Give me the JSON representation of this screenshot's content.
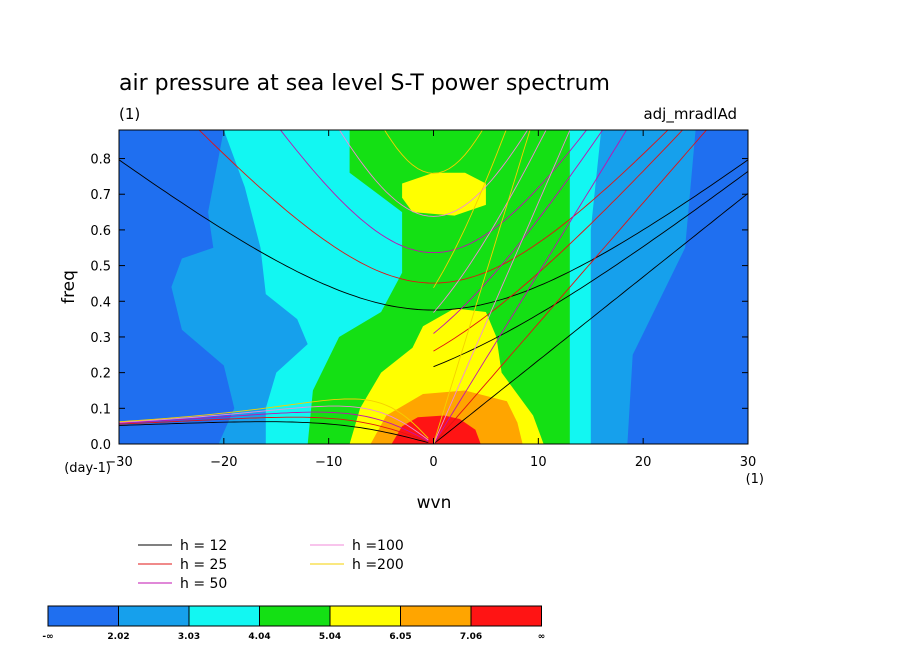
{
  "chart_data": {
    "type": "heatmap",
    "title": "air pressure at sea level S-T power spectrum",
    "units_left": "(1)",
    "run_label": "adj_mradlAd",
    "xlabel": "wvn",
    "ylabel": "freq",
    "x_unit_label": "(1)",
    "y_unit_label": "(day-1)",
    "xlim": [
      -30,
      30
    ],
    "ylim": [
      0,
      0.88
    ],
    "xticks": [
      -30,
      -20,
      -10,
      0,
      10,
      20,
      30
    ],
    "yticks": [
      0.0,
      0.1,
      0.2,
      0.3,
      0.4,
      0.5,
      0.6,
      0.7,
      0.8
    ],
    "ytick_labels": [
      "0.0",
      "0.1",
      "0.2",
      "0.3",
      "0.4",
      "0.5",
      "0.6",
      "0.7",
      "0.8"
    ],
    "levels": [
      2.02,
      3.03,
      4.04,
      5.04,
      6.05,
      7.06
    ],
    "colorbar_labels": [
      "-∞",
      "2.02",
      "3.03",
      "4.04",
      "5.04",
      "6.05",
      "7.06",
      "∞"
    ],
    "colors": [
      "#1f6ff0",
      "#16a0ec",
      "#12f7f2",
      "#14e014",
      "#ffff00",
      "#ffa500",
      "#ff1414"
    ],
    "dispersion_curves": [
      {
        "label": "h = 12",
        "h": 12,
        "color": "#000000"
      },
      {
        "label": "h = 25",
        "h": 25,
        "color": "#e01414"
      },
      {
        "label": "h = 50",
        "h": 50,
        "color": "#c010b0"
      },
      {
        "label": "h =100",
        "h": 100,
        "color": "#f08ad8"
      },
      {
        "label": "h =200",
        "h": 200,
        "color": "#f5d000"
      }
    ]
  }
}
